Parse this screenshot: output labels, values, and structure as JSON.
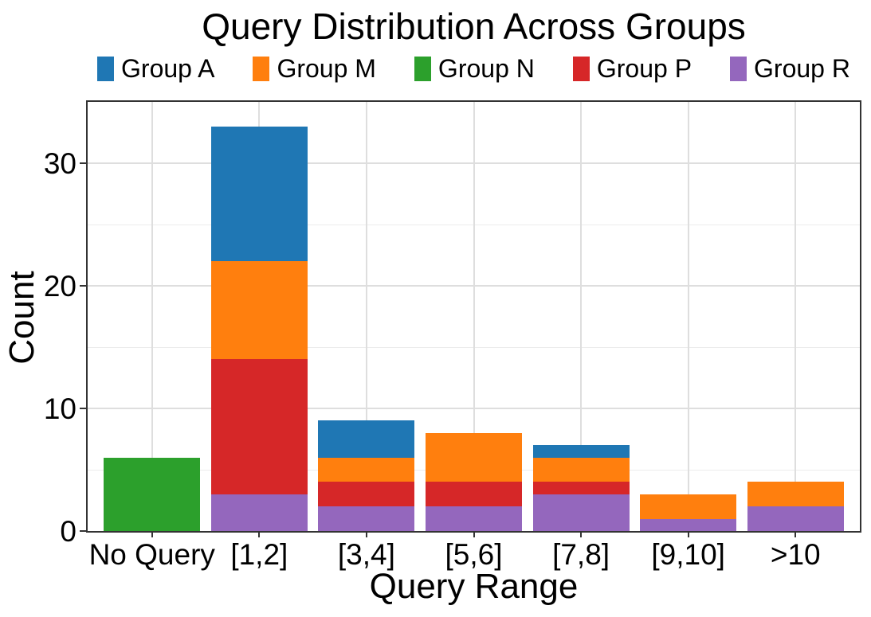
{
  "chart_data": {
    "type": "bar",
    "stacked": true,
    "title": "Query Distribution Across Groups",
    "xlabel": "Query Range",
    "ylabel": "Count",
    "categories": [
      "No Query",
      "[1,2]",
      "[3,4]",
      "[5,6]",
      "[7,8]",
      "[9,10]",
      ">10"
    ],
    "series": [
      {
        "name": "Group A",
        "color": "#1f77b4",
        "values": [
          0,
          11,
          3,
          0,
          1,
          0,
          0
        ]
      },
      {
        "name": "Group M",
        "color": "#ff7f0e",
        "values": [
          0,
          8,
          2,
          4,
          2,
          2,
          2
        ]
      },
      {
        "name": "Group N",
        "color": "#2ca02c",
        "values": [
          6,
          0,
          0,
          0,
          0,
          0,
          0
        ]
      },
      {
        "name": "Group P",
        "color": "#d62728",
        "values": [
          0,
          11,
          2,
          2,
          1,
          0,
          0
        ]
      },
      {
        "name": "Group R",
        "color": "#9467bd",
        "values": [
          0,
          3,
          2,
          2,
          3,
          1,
          2
        ]
      }
    ],
    "stack_order_bottom_to_top": [
      "Group R",
      "Group P",
      "Group N",
      "Group M",
      "Group A"
    ],
    "totals": [
      6,
      33,
      9,
      8,
      7,
      3,
      4
    ],
    "y_ticks": [
      "0",
      "10",
      "20",
      "30"
    ],
    "y_tick_values": [
      0,
      10,
      20,
      30
    ],
    "y_minor_gridline_values": [
      5,
      15,
      25
    ],
    "ylim": [
      0,
      35
    ],
    "grid": true,
    "legend_position": "top"
  },
  "colors": {
    "grid_major": "#dedede",
    "grid_minor": "#ececec",
    "panel_border": "#333333",
    "text": "#000000",
    "background": "#ffffff"
  }
}
